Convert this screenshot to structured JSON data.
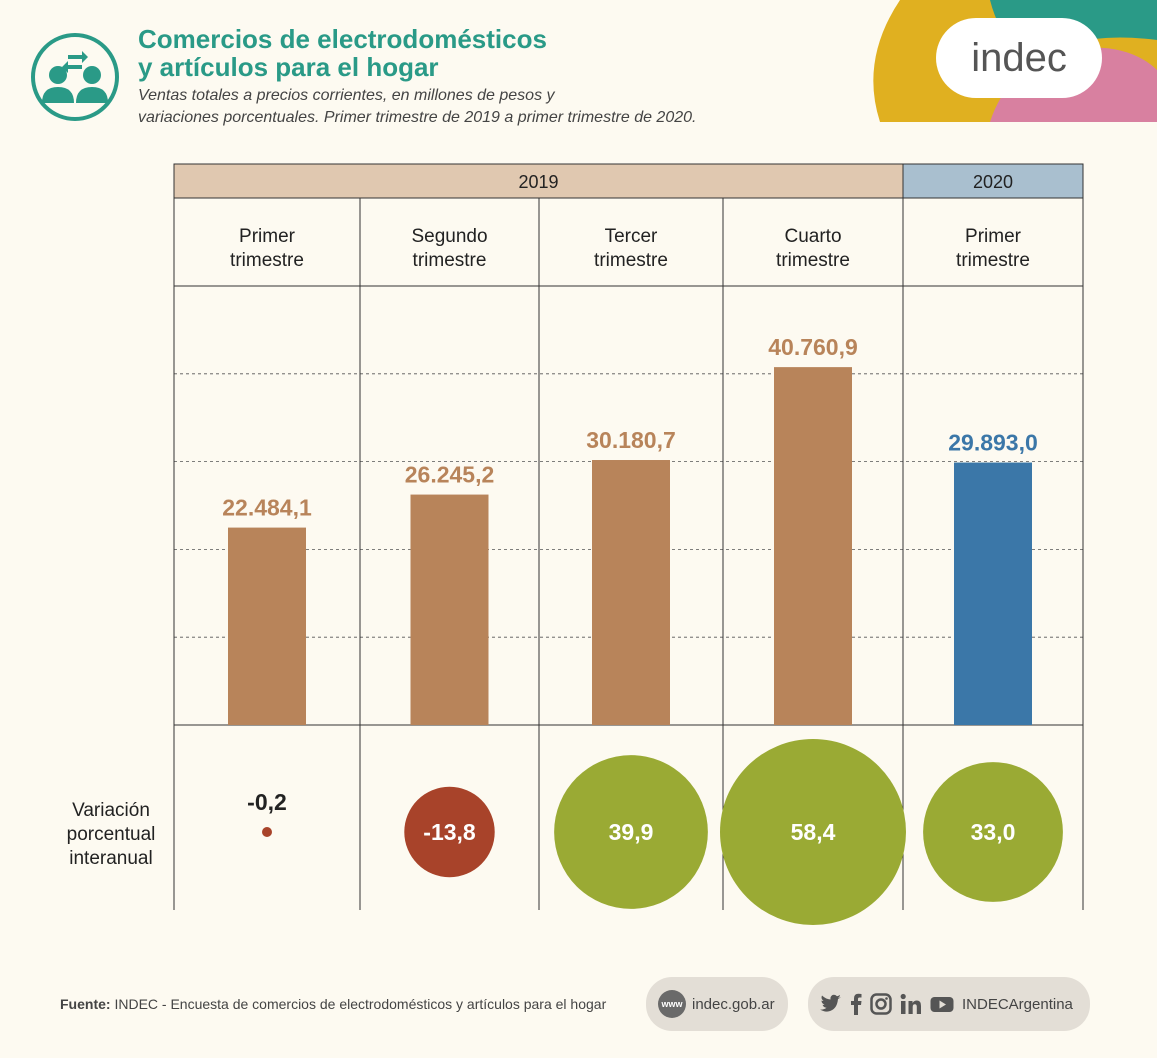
{
  "header": {
    "title_line1": "Comercios de electrodomésticos",
    "title_line2": "y artículos para el hogar",
    "subtitle_line1": "Ventas totales a precios corrientes, en millones de pesos y",
    "subtitle_line2": "variaciones porcentuales. Primer trimestre de 2019 a primer trimestre de 2020.",
    "icon": "people-exchange-icon",
    "logo_text": "indec"
  },
  "colors": {
    "teal": "#2a9a87",
    "bar_2019": "#b8845a",
    "bar_2020": "#3b77a8",
    "negative_circle": "#a8432a",
    "positive_circle": "#9aaa34",
    "header_2019": "#e0c8b0",
    "header_2020": "#a9bfcf",
    "logo_yellow": "#e0b020",
    "logo_teal": "#2a9a87",
    "logo_pink": "#d880a0"
  },
  "chart_data": {
    "type": "bar",
    "year_groups": [
      {
        "label": "2019",
        "span": 4
      },
      {
        "label": "2020",
        "span": 1
      }
    ],
    "categories": [
      [
        "Primer",
        "trimestre"
      ],
      [
        "Segundo",
        "trimestre"
      ],
      [
        "Tercer",
        "trimestre"
      ],
      [
        "Cuarto",
        "trimestre"
      ],
      [
        "Primer",
        "trimestre"
      ]
    ],
    "values": [
      22484.1,
      26245.2,
      30180.7,
      40760.9,
      29893.0
    ],
    "value_labels": [
      "22.484,1",
      "26.245,2",
      "30.180,7",
      "40.760,9",
      "29.893,0"
    ],
    "variation_label": [
      "Variación",
      "porcentual",
      "interanual"
    ],
    "variation": [
      -0.2,
      -13.8,
      39.9,
      58.4,
      33.0
    ],
    "variation_labels": [
      "-0,2",
      "-13,8",
      "39,9",
      "58,4",
      "33,0"
    ],
    "ylim": [
      0,
      50000
    ],
    "grid": true
  },
  "footer": {
    "source_label": "Fuente:",
    "source_text": "INDEC - Encuesta de comercios de electrodomésticos y artículos para el hogar",
    "www_badge": "www",
    "website": "indec.gob.ar",
    "social_handle": "INDECArgentina",
    "social_icons": [
      "twitter-icon",
      "facebook-icon",
      "instagram-icon",
      "linkedin-icon",
      "youtube-icon"
    ]
  }
}
